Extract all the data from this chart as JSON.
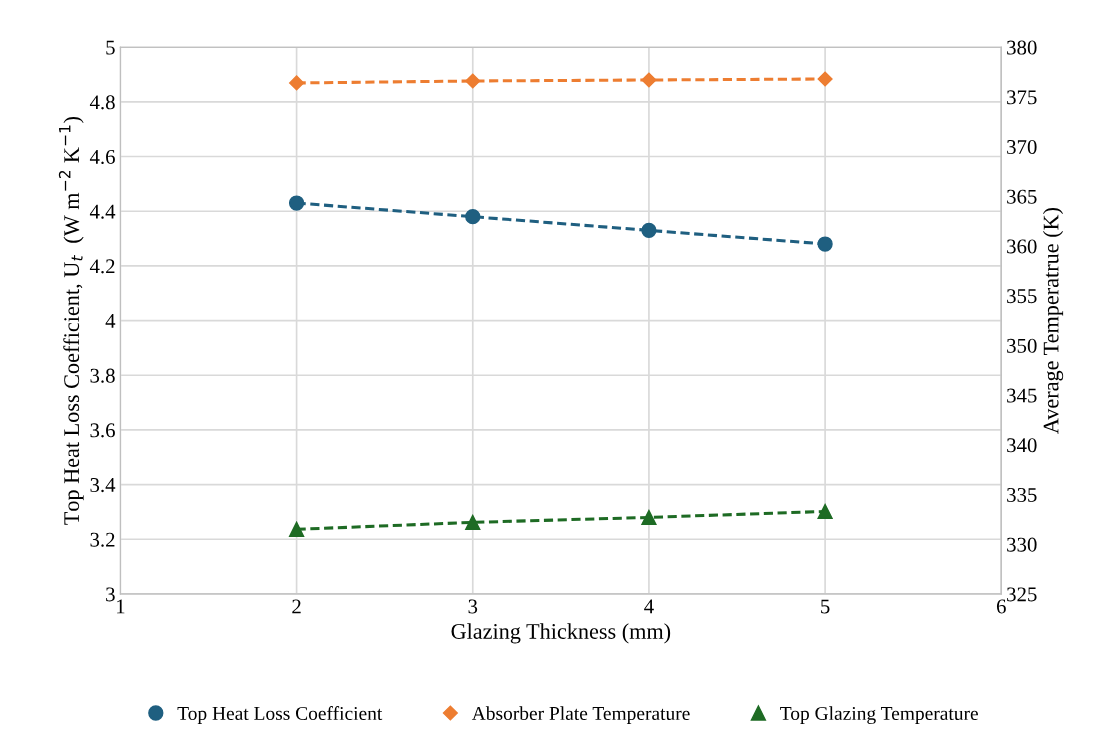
{
  "chart_data": {
    "type": "line",
    "xlabel": "Glazing Thickness (mm)",
    "ylabel": "Top Heat Loss Coefficient, U$_{t}$  (W m$^{−2}$ K$^{−1}$)",
    "y2label": "Average Temperatrue (K)",
    "x": [
      2,
      3,
      4,
      5
    ],
    "series": [
      {
        "name": "Top Heat Loss Coefficient",
        "color": "#1f5f80",
        "marker": "circle",
        "values": [
          4.43,
          4.38,
          4.33,
          4.28
        ]
      },
      {
        "name": "Absorber Plate Temperature",
        "color": "#ed7d31",
        "marker": "diamond",
        "axis": "y2",
        "values": [
          376.4,
          376.6,
          376.7,
          376.8
        ]
      },
      {
        "name": "Top Glazing Temperature",
        "color": "#1e6b24",
        "marker": "triangle",
        "axis": "y2",
        "values": [
          331.5,
          332.2,
          332.7,
          333.3
        ]
      }
    ],
    "xlim": [
      1,
      6
    ],
    "xticks": [
      1,
      2,
      3,
      4,
      5,
      6
    ],
    "ylim": [
      3,
      5
    ],
    "yticks": [
      3,
      3.2,
      3.4,
      3.6,
      3.8,
      4,
      4.2,
      4.4,
      4.6,
      4.8,
      5
    ],
    "y2lim": [
      325,
      380
    ],
    "y2ticks": [
      325,
      330,
      335,
      340,
      345,
      350,
      355,
      360,
      365,
      370,
      375,
      380
    ],
    "grid": true,
    "legend": "bottom",
    "line_style": "dashed"
  }
}
